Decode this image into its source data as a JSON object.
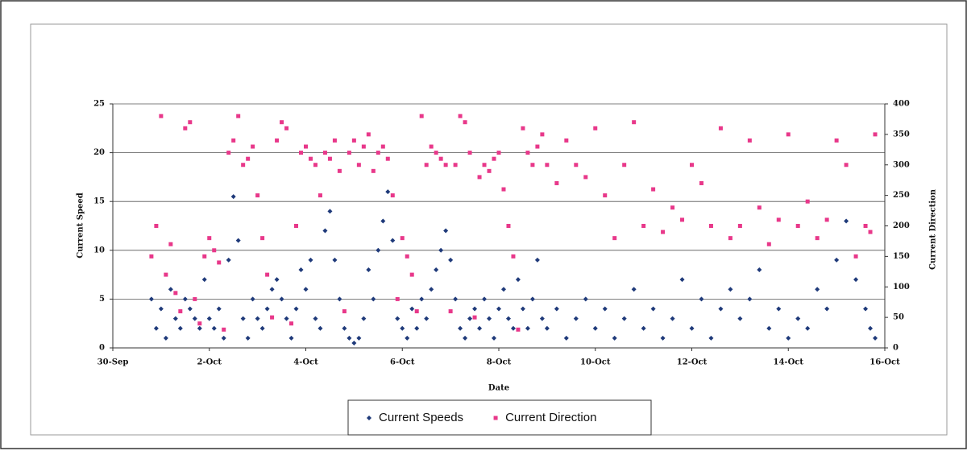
{
  "chart_data": {
    "type": "scatter",
    "x_label": "Date",
    "y_label": "Current Speed",
    "y2_label": "Current Direction",
    "xlim": [
      0,
      16
    ],
    "xticks": [
      {
        "value": 0,
        "label": "30-Sep"
      },
      {
        "value": 2,
        "label": "2-Oct"
      },
      {
        "value": 4,
        "label": "4-Oct"
      },
      {
        "value": 6,
        "label": "6-Oct"
      },
      {
        "value": 8,
        "label": "8-Oct"
      },
      {
        "value": 10,
        "label": "10-Oct"
      },
      {
        "value": 12,
        "label": "12-Oct"
      },
      {
        "value": 14,
        "label": "14-Oct"
      },
      {
        "value": 16,
        "label": "16-Oct"
      }
    ],
    "ylim": [
      0,
      25
    ],
    "yticks": [
      0,
      5,
      10,
      15,
      20,
      25
    ],
    "y2lim": [
      0,
      400
    ],
    "y2ticks": [
      0,
      50,
      100,
      150,
      200,
      250,
      300,
      350,
      400
    ],
    "grid": true,
    "legend": "bottom",
    "x": [
      0.8,
      0.9,
      1.0,
      1.1,
      1.2,
      1.3,
      1.4,
      1.5,
      1.6,
      1.7,
      1.8,
      1.9,
      2.0,
      2.1,
      2.2,
      2.3,
      2.4,
      2.5,
      2.6,
      2.7,
      2.8,
      2.9,
      3.0,
      3.1,
      3.2,
      3.3,
      3.4,
      3.5,
      3.6,
      3.7,
      3.8,
      3.9,
      4.0,
      4.1,
      4.2,
      4.3,
      4.4,
      4.5,
      4.6,
      4.7,
      4.8,
      4.9,
      5.0,
      5.1,
      5.2,
      5.3,
      5.4,
      5.5,
      5.6,
      5.7,
      5.8,
      5.9,
      6.0,
      6.1,
      6.2,
      6.3,
      6.4,
      6.5,
      6.6,
      6.7,
      6.8,
      6.9,
      7.0,
      7.1,
      7.2,
      7.3,
      7.4,
      7.5,
      7.6,
      7.7,
      7.8,
      7.9,
      8.0,
      8.1,
      8.2,
      8.3,
      8.4,
      8.5,
      8.6,
      8.7,
      8.8,
      8.9,
      9.0,
      9.2,
      9.4,
      9.6,
      9.8,
      10.0,
      10.2,
      10.4,
      10.6,
      10.8,
      11.0,
      11.2,
      11.4,
      11.6,
      11.8,
      12.0,
      12.2,
      12.4,
      12.6,
      12.8,
      13.0,
      13.2,
      13.4,
      13.6,
      13.8,
      14.0,
      14.2,
      14.4,
      14.6,
      14.8,
      15.0,
      15.2,
      15.4,
      15.6,
      15.7,
      15.8
    ],
    "series": [
      {
        "name": "Current Speeds",
        "color": "#1f3a7a",
        "axis": "y",
        "values": [
          5,
          2,
          4,
          1,
          6,
          3,
          2,
          5,
          4,
          3,
          2,
          7,
          3,
          2,
          4,
          1,
          9,
          15.5,
          11,
          3,
          1,
          5,
          3,
          2,
          4,
          6,
          7,
          5,
          3,
          1,
          4,
          8,
          6,
          9,
          3,
          2,
          12,
          14,
          9,
          5,
          2,
          1,
          0.5,
          1,
          3,
          8,
          5,
          10,
          13,
          16,
          11,
          3,
          2,
          1,
          4,
          2,
          5,
          3,
          6,
          8,
          10,
          12,
          9,
          5,
          2,
          1,
          3,
          4,
          2,
          5,
          3,
          1,
          4,
          6,
          3,
          2,
          7,
          4,
          2,
          5,
          9,
          3,
          2,
          4,
          1,
          3,
          5,
          2,
          4,
          1,
          3,
          6,
          2,
          4,
          1,
          3,
          7,
          2,
          5,
          1,
          4,
          6,
          3,
          5,
          8,
          2,
          4,
          1,
          3,
          2,
          6,
          4,
          9,
          13,
          7,
          4,
          2,
          1
        ]
      },
      {
        "name": "Current Direction",
        "color": "#e8388a",
        "axis": "y2",
        "values": [
          150,
          200,
          380,
          120,
          170,
          90,
          60,
          360,
          370,
          80,
          40,
          150,
          180,
          160,
          140,
          30,
          320,
          340,
          380,
          300,
          310,
          330,
          250,
          180,
          120,
          50,
          340,
          370,
          360,
          40,
          200,
          320,
          330,
          310,
          300,
          250,
          320,
          310,
          340,
          290,
          60,
          320,
          340,
          300,
          330,
          350,
          290,
          320,
          330,
          310,
          250,
          80,
          180,
          150,
          120,
          60,
          380,
          300,
          330,
          320,
          310,
          300,
          60,
          300,
          380,
          370,
          320,
          50,
          280,
          300,
          290,
          310,
          320,
          260,
          200,
          150,
          30,
          360,
          320,
          300,
          330,
          350,
          300,
          270,
          340,
          300,
          280,
          360,
          250,
          180,
          300,
          370,
          200,
          260,
          190,
          230,
          210,
          300,
          270,
          200,
          360,
          180,
          200,
          340,
          230,
          170,
          210,
          350,
          200,
          240,
          180,
          210,
          340,
          300,
          150,
          200,
          190,
          350
        ]
      }
    ]
  }
}
